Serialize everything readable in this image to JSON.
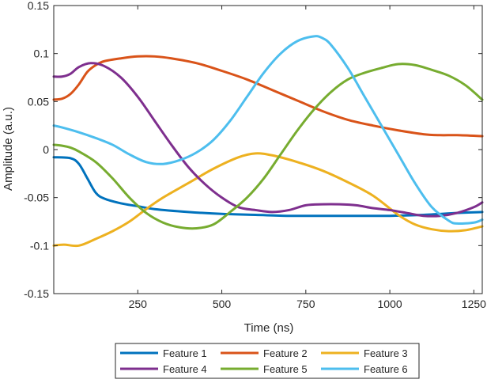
{
  "chart_data": {
    "type": "line",
    "title": "",
    "xlabel": "Time (ns)",
    "ylabel": "Amplitude (a.u.)",
    "xlim": [
      0,
      1275
    ],
    "ylim": [
      -0.15,
      0.15
    ],
    "xticks": [
      250,
      500,
      750,
      1000,
      1250
    ],
    "yticks": [
      -0.15,
      -0.1,
      -0.05,
      0,
      0.05,
      0.1,
      0.15
    ],
    "xtick_labels": [
      "250",
      "500",
      "750",
      "1000",
      "1250"
    ],
    "ytick_labels": [
      "-0.15",
      "-0.1",
      "-0.05",
      "0",
      "0.05",
      "0.1",
      "0.15"
    ],
    "grid": false,
    "legend_position": "bottom-outside",
    "series": [
      {
        "name": "Feature 1",
        "color": "#0072BD",
        "points": [
          [
            0,
            -0.008
          ],
          [
            50,
            -0.009
          ],
          [
            75,
            -0.015
          ],
          [
            100,
            -0.03
          ],
          [
            125,
            -0.045
          ],
          [
            150,
            -0.051
          ],
          [
            200,
            -0.056
          ],
          [
            250,
            -0.059
          ],
          [
            300,
            -0.062
          ],
          [
            400,
            -0.065
          ],
          [
            500,
            -0.067
          ],
          [
            600,
            -0.068
          ],
          [
            700,
            -0.069
          ],
          [
            800,
            -0.069
          ],
          [
            900,
            -0.069
          ],
          [
            1000,
            -0.069
          ],
          [
            1100,
            -0.068
          ],
          [
            1200,
            -0.066
          ],
          [
            1275,
            -0.065
          ]
        ]
      },
      {
        "name": "Feature 2",
        "color": "#D95319",
        "points": [
          [
            0,
            0.052
          ],
          [
            25,
            0.053
          ],
          [
            50,
            0.058
          ],
          [
            75,
            0.068
          ],
          [
            100,
            0.081
          ],
          [
            125,
            0.088
          ],
          [
            150,
            0.092
          ],
          [
            200,
            0.095
          ],
          [
            250,
            0.097
          ],
          [
            300,
            0.097
          ],
          [
            350,
            0.095
          ],
          [
            425,
            0.09
          ],
          [
            500,
            0.082
          ],
          [
            575,
            0.073
          ],
          [
            650,
            0.062
          ],
          [
            725,
            0.051
          ],
          [
            800,
            0.04
          ],
          [
            875,
            0.031
          ],
          [
            950,
            0.025
          ],
          [
            1025,
            0.02
          ],
          [
            1100,
            0.016
          ],
          [
            1150,
            0.015
          ],
          [
            1200,
            0.015
          ],
          [
            1275,
            0.014
          ]
        ]
      },
      {
        "name": "Feature 3",
        "color": "#EDB120",
        "points": [
          [
            0,
            -0.1
          ],
          [
            30,
            -0.099
          ],
          [
            75,
            -0.1
          ],
          [
            125,
            -0.093
          ],
          [
            175,
            -0.085
          ],
          [
            225,
            -0.075
          ],
          [
            275,
            -0.062
          ],
          [
            325,
            -0.05
          ],
          [
            400,
            -0.035
          ],
          [
            475,
            -0.02
          ],
          [
            550,
            -0.008
          ],
          [
            600,
            -0.004
          ],
          [
            650,
            -0.006
          ],
          [
            725,
            -0.013
          ],
          [
            800,
            -0.022
          ],
          [
            875,
            -0.034
          ],
          [
            950,
            -0.048
          ],
          [
            1025,
            -0.068
          ],
          [
            1075,
            -0.078
          ],
          [
            1125,
            -0.083
          ],
          [
            1175,
            -0.085
          ],
          [
            1225,
            -0.084
          ],
          [
            1275,
            -0.08
          ]
        ]
      },
      {
        "name": "Feature 4",
        "color": "#7E2F8E",
        "points": [
          [
            0,
            0.076
          ],
          [
            25,
            0.076
          ],
          [
            50,
            0.079
          ],
          [
            75,
            0.086
          ],
          [
            110,
            0.09
          ],
          [
            150,
            0.087
          ],
          [
            200,
            0.075
          ],
          [
            250,
            0.055
          ],
          [
            300,
            0.03
          ],
          [
            350,
            0.005
          ],
          [
            400,
            -0.018
          ],
          [
            450,
            -0.036
          ],
          [
            500,
            -0.05
          ],
          [
            550,
            -0.06
          ],
          [
            600,
            -0.063
          ],
          [
            650,
            -0.065
          ],
          [
            700,
            -0.063
          ],
          [
            750,
            -0.058
          ],
          [
            800,
            -0.057
          ],
          [
            850,
            -0.057
          ],
          [
            900,
            -0.058
          ],
          [
            950,
            -0.061
          ],
          [
            1000,
            -0.063
          ],
          [
            1050,
            -0.066
          ],
          [
            1100,
            -0.069
          ],
          [
            1150,
            -0.069
          ],
          [
            1200,
            -0.066
          ],
          [
            1250,
            -0.06
          ],
          [
            1275,
            -0.055
          ]
        ]
      },
      {
        "name": "Feature 5",
        "color": "#77AC30",
        "points": [
          [
            0,
            0.005
          ],
          [
            25,
            0.004
          ],
          [
            50,
            0.002
          ],
          [
            75,
            -0.002
          ],
          [
            125,
            -0.013
          ],
          [
            175,
            -0.03
          ],
          [
            225,
            -0.05
          ],
          [
            275,
            -0.066
          ],
          [
            325,
            -0.076
          ],
          [
            375,
            -0.081
          ],
          [
            425,
            -0.082
          ],
          [
            475,
            -0.078
          ],
          [
            525,
            -0.065
          ],
          [
            575,
            -0.05
          ],
          [
            625,
            -0.03
          ],
          [
            675,
            -0.005
          ],
          [
            725,
            0.02
          ],
          [
            775,
            0.042
          ],
          [
            825,
            0.06
          ],
          [
            875,
            0.073
          ],
          [
            925,
            0.08
          ],
          [
            975,
            0.085
          ],
          [
            1025,
            0.089
          ],
          [
            1075,
            0.088
          ],
          [
            1125,
            0.083
          ],
          [
            1175,
            0.077
          ],
          [
            1225,
            0.067
          ],
          [
            1275,
            0.052
          ]
        ]
      },
      {
        "name": "Feature 6",
        "color": "#4DBEEE",
        "points": [
          [
            0,
            0.025
          ],
          [
            25,
            0.023
          ],
          [
            75,
            0.018
          ],
          [
            125,
            0.012
          ],
          [
            175,
            0.005
          ],
          [
            225,
            -0.005
          ],
          [
            275,
            -0.013
          ],
          [
            325,
            -0.015
          ],
          [
            375,
            -0.011
          ],
          [
            425,
            -0.003
          ],
          [
            475,
            0.01
          ],
          [
            525,
            0.03
          ],
          [
            575,
            0.055
          ],
          [
            625,
            0.08
          ],
          [
            675,
            0.1
          ],
          [
            725,
            0.113
          ],
          [
            775,
            0.118
          ],
          [
            800,
            0.116
          ],
          [
            825,
            0.109
          ],
          [
            875,
            0.085
          ],
          [
            925,
            0.055
          ],
          [
            975,
            0.025
          ],
          [
            1025,
            -0.005
          ],
          [
            1075,
            -0.035
          ],
          [
            1125,
            -0.06
          ],
          [
            1175,
            -0.074
          ],
          [
            1200,
            -0.077
          ],
          [
            1250,
            -0.076
          ],
          [
            1275,
            -0.073
          ]
        ]
      }
    ]
  }
}
